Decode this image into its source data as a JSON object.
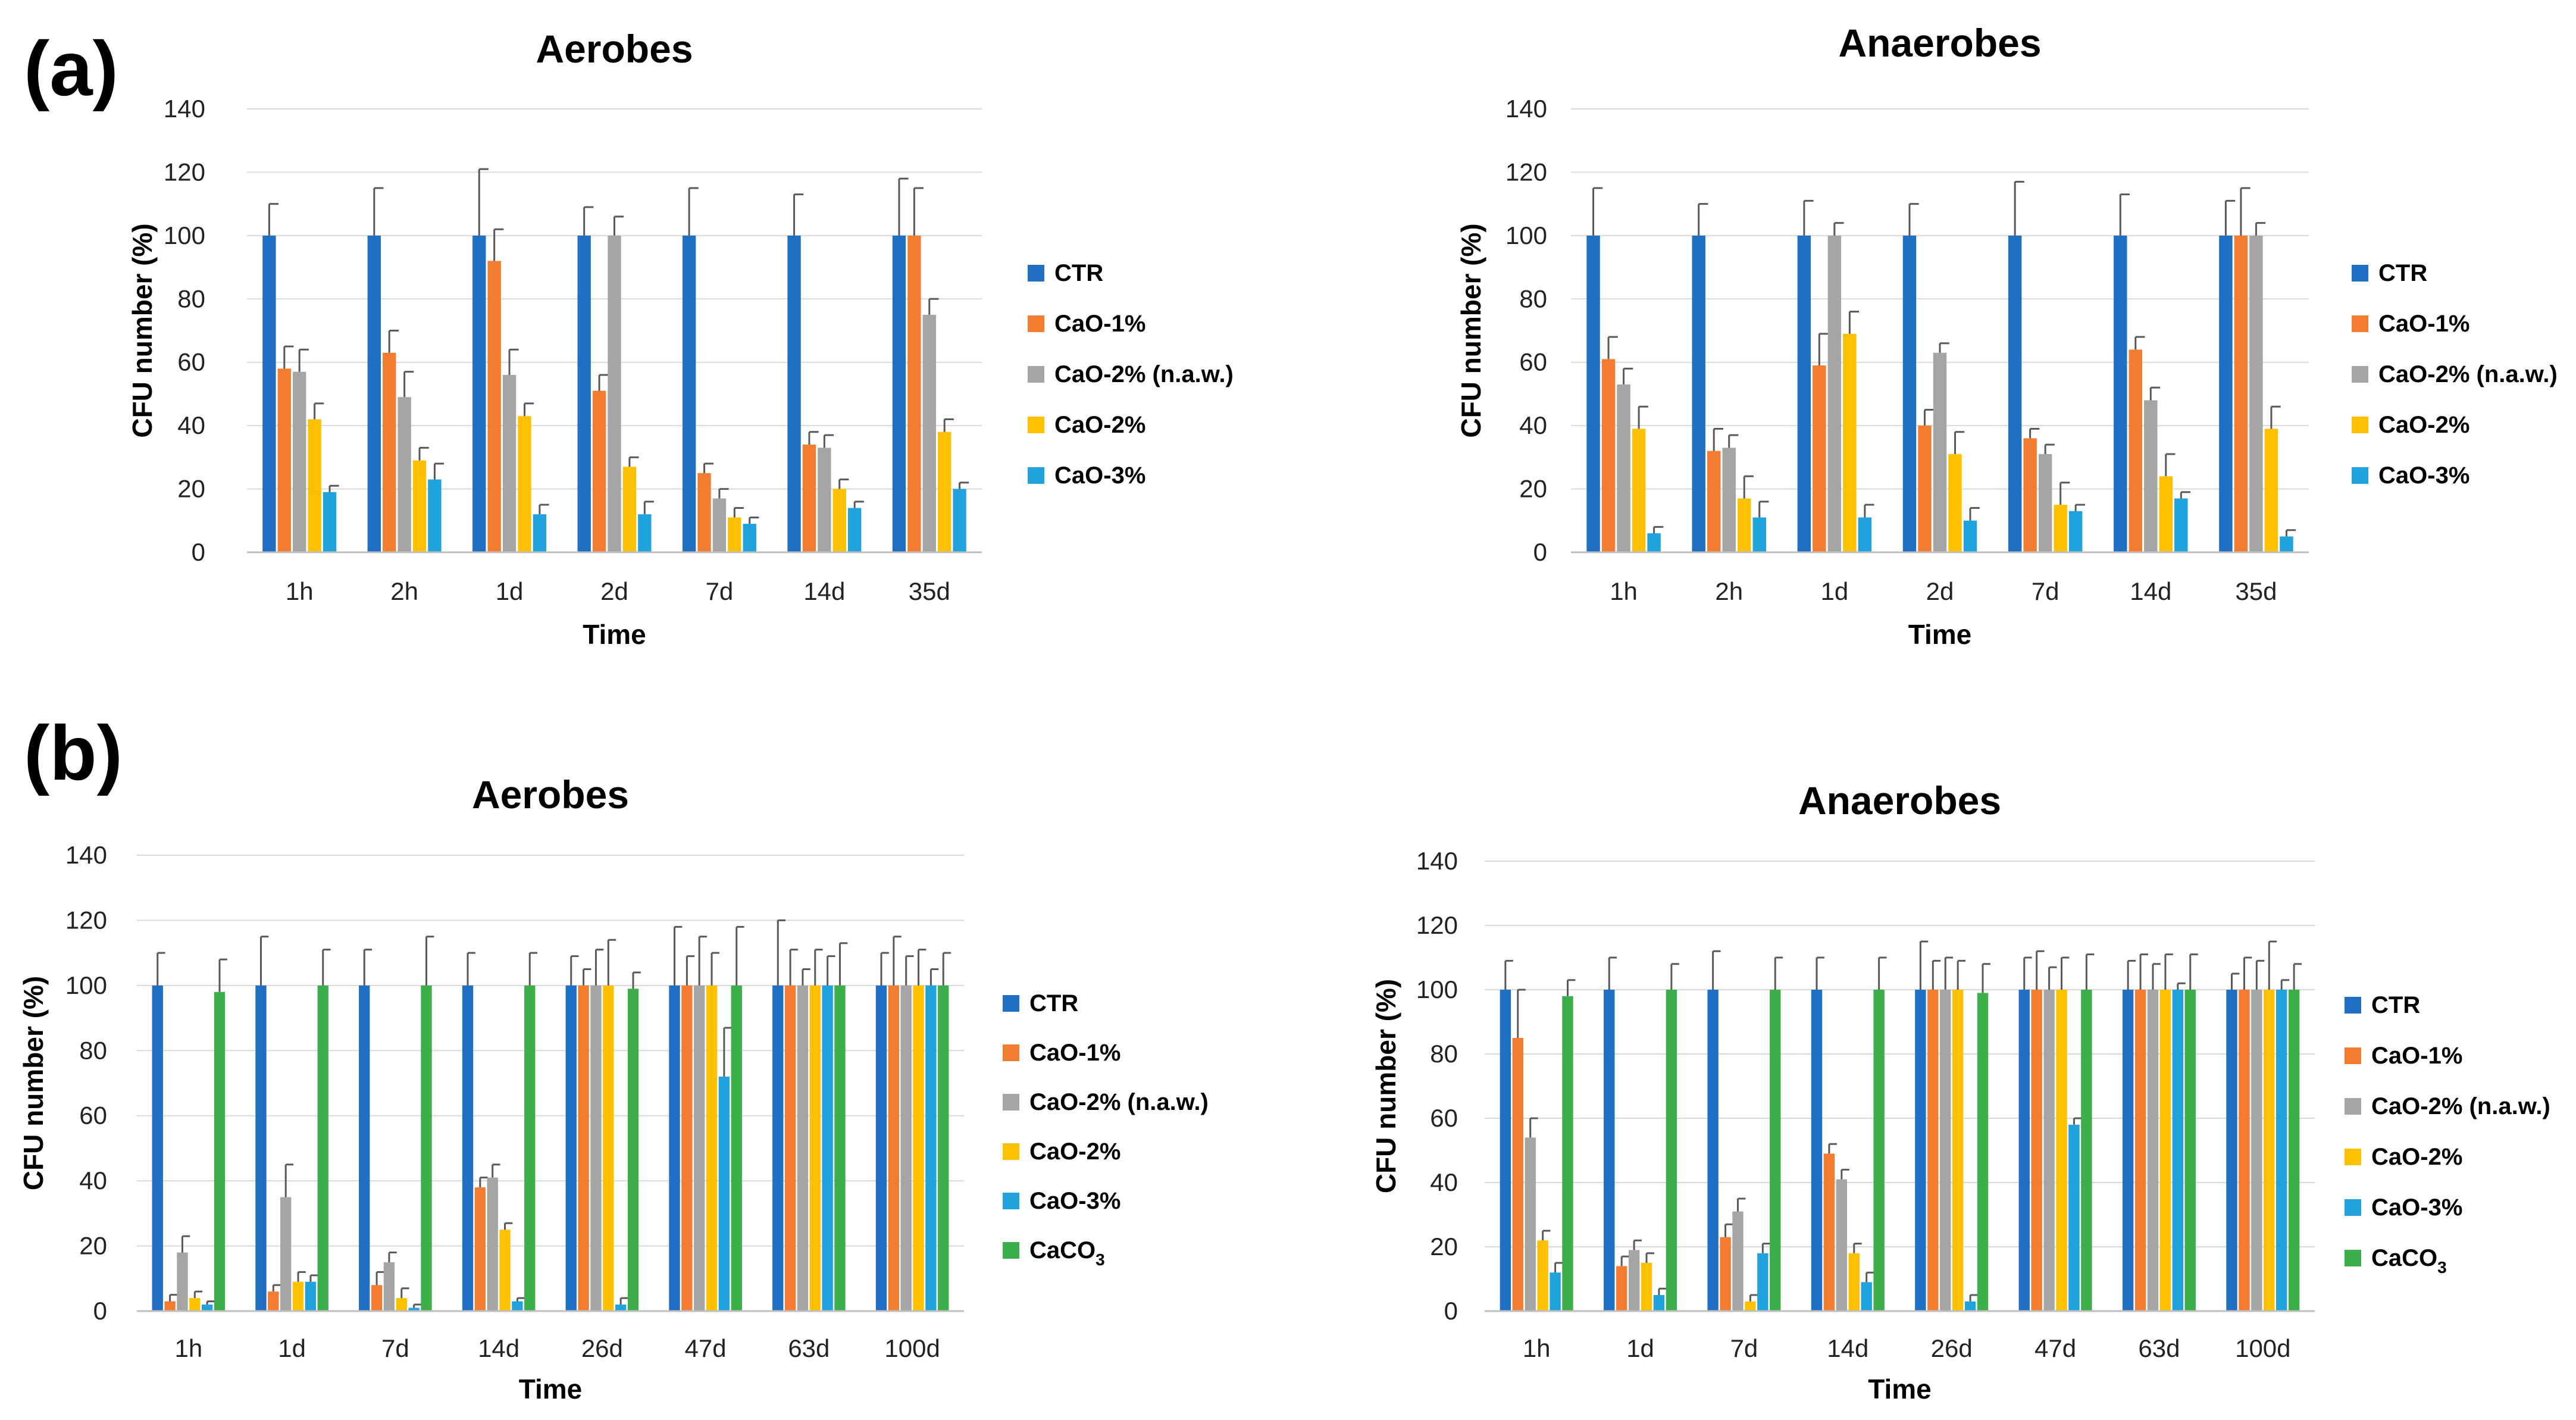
{
  "panel_labels": [
    "(a)",
    "(b)"
  ],
  "colors": {
    "CTR": "#1f6fc4",
    "CaO-1%": "#f47c30",
    "CaO-2% (n.a.w.)": "#a5a5a5",
    "CaO-2%": "#ffc000",
    "CaO-3%": "#20a3dc",
    "CaCO3": "#3caf4a"
  },
  "chart_data": [
    {
      "id": "a-aerobes",
      "type": "bar",
      "title": "Aerobes",
      "xlabel": "Time",
      "ylabel": "CFU number (%)",
      "ylim": [
        0,
        140
      ],
      "yticks": [
        0,
        20,
        40,
        60,
        80,
        100,
        120,
        140
      ],
      "grid": true,
      "legend": "right",
      "categories": [
        "1h",
        "2h",
        "1d",
        "2d",
        "7d",
        "14d",
        "35d"
      ],
      "series": [
        {
          "name": "CTR",
          "values": [
            100,
            100,
            100,
            100,
            100,
            100,
            100
          ],
          "errors": [
            10,
            15,
            21,
            9,
            15,
            13,
            18
          ]
        },
        {
          "name": "CaO-1%",
          "values": [
            58,
            63,
            92,
            51,
            25,
            34,
            100
          ],
          "errors": [
            7,
            7,
            10,
            5,
            3,
            4,
            15
          ]
        },
        {
          "name": "CaO-2% (n.a.w.)",
          "values": [
            57,
            49,
            56,
            100,
            17,
            33,
            75
          ],
          "errors": [
            7,
            8,
            8,
            6,
            3,
            4,
            5
          ]
        },
        {
          "name": "CaO-2%",
          "values": [
            42,
            29,
            43,
            27,
            11,
            20,
            38
          ],
          "errors": [
            5,
            4,
            4,
            3,
            3,
            3,
            4
          ]
        },
        {
          "name": "CaO-3%",
          "values": [
            19,
            23,
            12,
            12,
            9,
            14,
            20
          ],
          "errors": [
            2,
            5,
            3,
            4,
            2,
            2,
            2
          ]
        }
      ]
    },
    {
      "id": "a-anaerobes",
      "type": "bar",
      "title": "Anaerobes",
      "xlabel": "Time",
      "ylabel": "CFU number (%)",
      "ylim": [
        0,
        140
      ],
      "yticks": [
        0,
        20,
        40,
        60,
        80,
        100,
        120,
        140
      ],
      "grid": true,
      "legend": "right",
      "categories": [
        "1h",
        "2h",
        "1d",
        "2d",
        "7d",
        "14d",
        "35d"
      ],
      "series": [
        {
          "name": "CTR",
          "values": [
            100,
            100,
            100,
            100,
            100,
            100,
            100
          ],
          "errors": [
            15,
            10,
            11,
            10,
            17,
            13,
            11
          ]
        },
        {
          "name": "CaO-1%",
          "values": [
            61,
            32,
            59,
            40,
            36,
            64,
            100
          ],
          "errors": [
            7,
            7,
            10,
            5,
            3,
            4,
            15
          ]
        },
        {
          "name": "CaO-2% (n.a.w.)",
          "values": [
            53,
            33,
            100,
            63,
            31,
            48,
            100
          ],
          "errors": [
            5,
            4,
            4,
            3,
            3,
            4,
            4
          ]
        },
        {
          "name": "CaO-2%",
          "values": [
            39,
            17,
            69,
            31,
            15,
            24,
            39
          ],
          "errors": [
            7,
            7,
            7,
            7,
            7,
            7,
            7
          ]
        },
        {
          "name": "CaO-3%",
          "values": [
            6,
            11,
            11,
            10,
            13,
            17,
            5
          ],
          "errors": [
            2,
            5,
            4,
            4,
            2,
            2,
            2
          ]
        }
      ]
    },
    {
      "id": "b-aerobes",
      "type": "bar",
      "title": "Aerobes",
      "xlabel": "Time",
      "ylabel": "CFU number (%)",
      "ylim": [
        0,
        140
      ],
      "yticks": [
        0,
        20,
        40,
        60,
        80,
        100,
        120,
        140
      ],
      "grid": true,
      "legend": "right",
      "categories": [
        "1h",
        "1d",
        "7d",
        "14d",
        "26d",
        "47d",
        "63d",
        "100d"
      ],
      "series": [
        {
          "name": "CTR",
          "values": [
            100,
            100,
            100,
            100,
            100,
            100,
            100,
            100
          ],
          "errors": [
            10,
            15,
            11,
            10,
            9,
            18,
            20,
            10
          ]
        },
        {
          "name": "CaO-1%",
          "values": [
            3,
            6,
            8,
            38,
            100,
            100,
            100,
            100
          ],
          "errors": [
            2,
            2,
            4,
            3,
            5,
            9,
            11,
            15
          ]
        },
        {
          "name": "CaO-2% (n.a.w.)",
          "values": [
            18,
            35,
            15,
            41,
            100,
            100,
            100,
            100
          ],
          "errors": [
            5,
            10,
            3,
            4,
            11,
            15,
            5,
            9
          ]
        },
        {
          "name": "CaO-2%",
          "values": [
            4,
            9,
            4,
            25,
            100,
            100,
            100,
            100
          ],
          "errors": [
            2,
            3,
            3,
            2,
            14,
            10,
            11,
            11
          ]
        },
        {
          "name": "CaO-3%",
          "values": [
            2,
            9,
            1,
            3,
            2,
            72,
            100,
            100
          ],
          "errors": [
            1,
            2,
            1,
            1,
            2,
            15,
            9,
            5
          ]
        },
        {
          "name": "CaCO3",
          "values": [
            98,
            100,
            100,
            100,
            99,
            100,
            100,
            100
          ],
          "errors": [
            10,
            11,
            15,
            10,
            5,
            18,
            13,
            10
          ]
        }
      ]
    },
    {
      "id": "b-anaerobes",
      "type": "bar",
      "title": "Anaerobes",
      "xlabel": "Time",
      "ylabel": "CFU number (%)",
      "ylim": [
        0,
        140
      ],
      "yticks": [
        0,
        20,
        40,
        60,
        80,
        100,
        120,
        140
      ],
      "grid": true,
      "legend": "right",
      "categories": [
        "1h",
        "1d",
        "7d",
        "14d",
        "26d",
        "47d",
        "63d",
        "100d"
      ],
      "series": [
        {
          "name": "CTR",
          "values": [
            100,
            100,
            100,
            100,
            100,
            100,
            100,
            100
          ],
          "errors": [
            9,
            10,
            12,
            10,
            15,
            10,
            9,
            5
          ]
        },
        {
          "name": "CaO-1%",
          "values": [
            85,
            14,
            23,
            49,
            100,
            100,
            100,
            100
          ],
          "errors": [
            15,
            3,
            4,
            3,
            9,
            12,
            11,
            10
          ]
        },
        {
          "name": "CaO-2% (n.a.w.)",
          "values": [
            54,
            19,
            31,
            41,
            100,
            100,
            100,
            100
          ],
          "errors": [
            6,
            3,
            4,
            3,
            10,
            7,
            8,
            9
          ]
        },
        {
          "name": "CaO-2%",
          "values": [
            22,
            15,
            3,
            18,
            100,
            100,
            100,
            100
          ],
          "errors": [
            3,
            3,
            2,
            3,
            9,
            10,
            11,
            15
          ]
        },
        {
          "name": "CaO-3%",
          "values": [
            12,
            5,
            18,
            9,
            3,
            58,
            100,
            100
          ],
          "errors": [
            3,
            2,
            3,
            3,
            2,
            2,
            2,
            3
          ]
        },
        {
          "name": "CaCO3",
          "values": [
            98,
            100,
            100,
            100,
            99,
            100,
            100,
            100
          ],
          "errors": [
            5,
            8,
            10,
            10,
            9,
            11,
            11,
            8
          ]
        }
      ]
    }
  ]
}
